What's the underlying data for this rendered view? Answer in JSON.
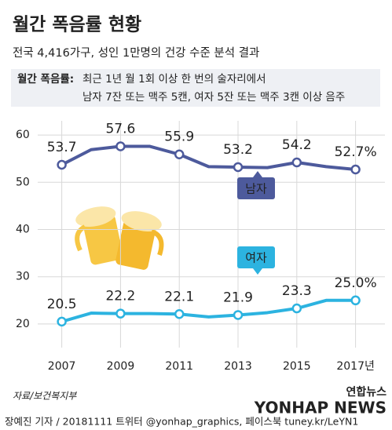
{
  "chart_data": {
    "type": "line",
    "title": "월간 폭음률 현황",
    "subtitle": "전국 4,416가구, 성인 1만명의 건강 수준 분석 결과",
    "definition": {
      "term": "월간 폭음률:",
      "lines": [
        "최근 1년 월 1회 이상 한 번의 술자리에서",
        "남자 7잔 또는 맥주 5캔, 여자 5잔 또는 맥주 3캔 이상 음주"
      ]
    },
    "x": [
      2007,
      2008,
      2009,
      2010,
      2011,
      2012,
      2013,
      2014,
      2015,
      2016,
      2017
    ],
    "series": [
      {
        "name": "남자",
        "color": "#4d5a9c",
        "values": [
          53.7,
          56.9,
          57.6,
          57.6,
          55.9,
          53.3,
          53.2,
          53.1,
          54.2,
          53.3,
          52.7
        ],
        "value_labels": [
          "53.7",
          null,
          "57.6",
          null,
          "55.9",
          null,
          "53.2",
          null,
          "54.2",
          null,
          "52.7%"
        ]
      },
      {
        "name": "여자",
        "color": "#2cb3e0",
        "values": [
          20.5,
          22.3,
          22.2,
          22.2,
          22.1,
          21.5,
          21.9,
          22.4,
          23.3,
          25.0,
          25.0
        ],
        "value_labels": [
          "20.5",
          null,
          "22.2",
          null,
          "22.1",
          null,
          "21.9",
          null,
          "23.3",
          null,
          "25.0%"
        ]
      }
    ],
    "xlim": [
      2005.7,
      2018
    ],
    "xticks": [
      2007,
      2009,
      2011,
      2013,
      2015,
      {
        "value": 2017,
        "label": "2017년"
      }
    ],
    "ylim": [
      15,
      63
    ],
    "yticks": [
      20,
      30,
      40,
      50,
      60
    ],
    "grid": true,
    "source": "자료/보건복지부",
    "credit": "장예진 기자 / 20181111 트위터 @yonhap_graphics, 페이스북 tuney.kr/LeYN1",
    "logo": "연합뉴스",
    "watermark": "YONHAP NEWS"
  }
}
